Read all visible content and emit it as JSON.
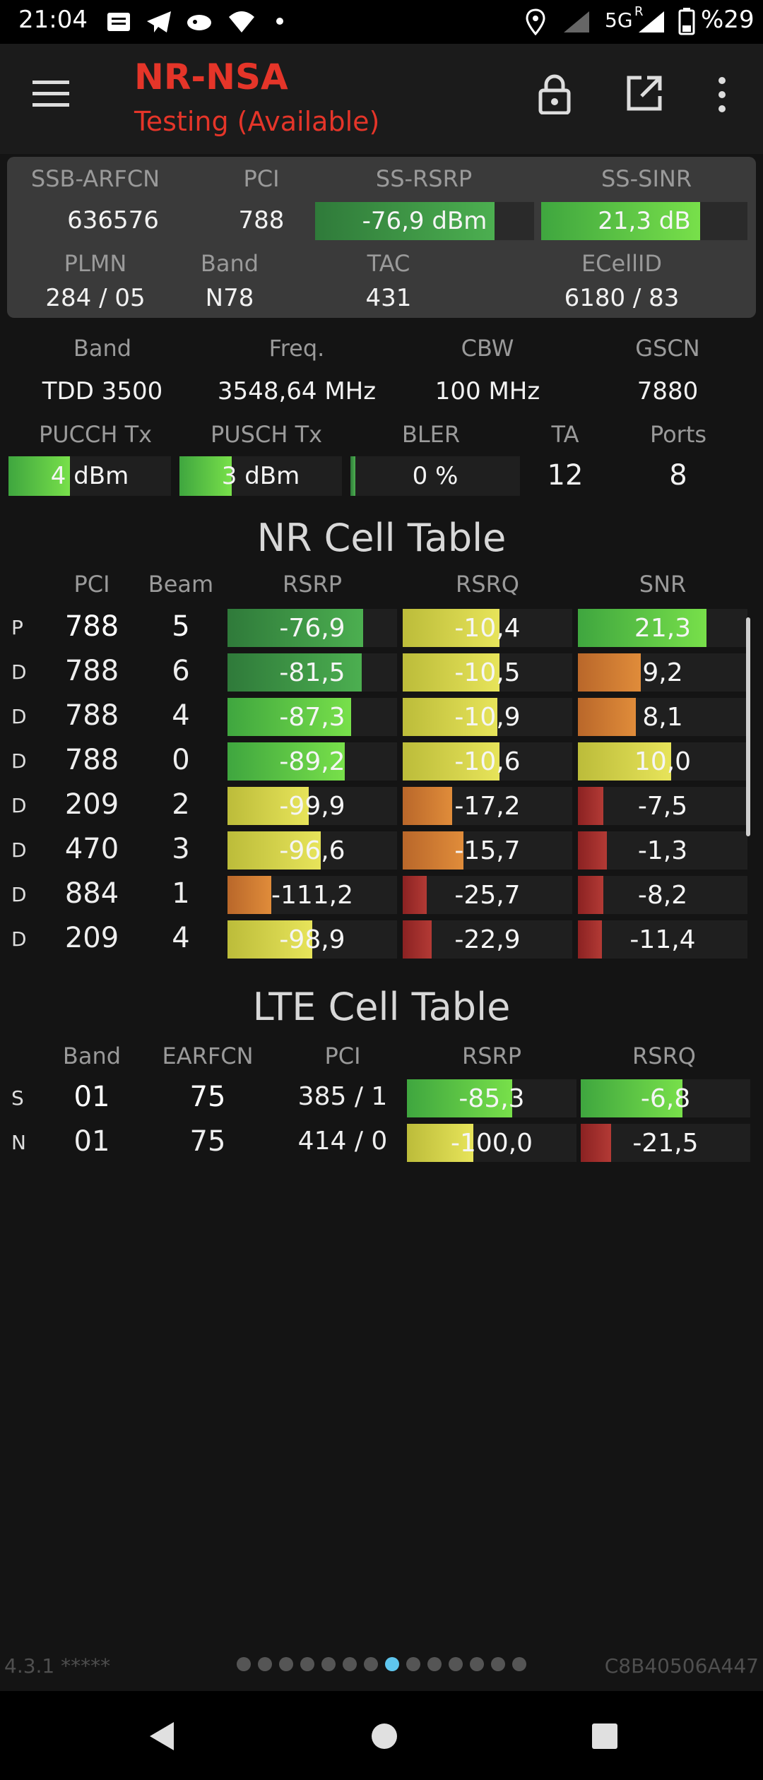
{
  "status_bar": {
    "time": "21:04",
    "network": "5G",
    "roaming": "R",
    "battery": "%29",
    "icons": [
      "message-icon",
      "telegram-icon",
      "app-icon",
      "wifi-icon",
      "dot-icon",
      "location-icon",
      "signal-icon",
      "battery-icon"
    ]
  },
  "app_bar": {
    "title": "NR-NSA",
    "subtitle": "Testing (Available)",
    "icons": [
      "menu-icon",
      "lock-icon",
      "open-external-icon",
      "more-vert-icon"
    ]
  },
  "serving": {
    "headers": {
      "arfcn": "SSB-ARFCN",
      "pci": "PCI",
      "rsrp": "SS-RSRP",
      "sinr": "SS-SINR",
      "plmn": "PLMN",
      "band": "Band",
      "tac": "TAC",
      "ecellid": "ECellID"
    },
    "arfcn": "636576",
    "pci": "788",
    "rsrp": "-76,9 dBm",
    "rsrp_level": 0.82,
    "sinr": "21,3 dB",
    "sinr_level": 0.77,
    "plmn": "284 / 05",
    "band": "N78",
    "tac": "431",
    "ecellid": "6180 / 83"
  },
  "carrier": {
    "headers": {
      "band": "Band",
      "freq": "Freq.",
      "cbw": "CBW",
      "gscn": "GSCN"
    },
    "band": "TDD 3500",
    "freq": "3548,64 MHz",
    "cbw": "100 MHz",
    "gscn": "7880"
  },
  "tx": {
    "headers": {
      "pucch": "PUCCH Tx",
      "pusch": "PUSCH Tx",
      "bler": "BLER",
      "ta": "TA",
      "ports": "Ports"
    },
    "pucch": "4 dBm",
    "pucch_level": 0.38,
    "pusch": "3 dBm",
    "pusch_level": 0.32,
    "bler": "0 %",
    "bler_level": 0.03,
    "ta": "12",
    "ports": "8"
  },
  "nr_table": {
    "title": "NR Cell Table",
    "columns": [
      "PCI",
      "Beam",
      "RSRP",
      "RSRQ",
      "SNR"
    ],
    "rows": [
      {
        "type": "P",
        "pci": "788",
        "beam": "5",
        "rsrp": "-76,9",
        "rsrp_level": 0.8,
        "rsrp_color": "g1",
        "rsrq": "-10,4",
        "rsrq_level": 0.57,
        "rsrq_color": "y1",
        "snr": "21,3",
        "snr_level": 0.76,
        "snr_color": "g2"
      },
      {
        "type": "D",
        "pci": "788",
        "beam": "6",
        "rsrp": "-81,5",
        "rsrp_level": 0.79,
        "rsrp_color": "g1",
        "rsrq": "-10,5",
        "rsrq_level": 0.57,
        "rsrq_color": "y1",
        "snr": "9,2",
        "snr_level": 0.37,
        "snr_color": "o1"
      },
      {
        "type": "D",
        "pci": "788",
        "beam": "4",
        "rsrp": "-87,3",
        "rsrp_level": 0.73,
        "rsrp_color": "g2",
        "rsrq": "-10,9",
        "rsrq_level": 0.56,
        "rsrq_color": "y1",
        "snr": "8,1",
        "snr_level": 0.34,
        "snr_color": "o1"
      },
      {
        "type": "D",
        "pci": "788",
        "beam": "0",
        "rsrp": "-89,2",
        "rsrp_level": 0.69,
        "rsrp_color": "g2",
        "rsrq": "-10,6",
        "rsrq_level": 0.57,
        "rsrq_color": "y1",
        "snr": "10,0",
        "snr_level": 0.55,
        "snr_color": "y1"
      },
      {
        "type": "D",
        "pci": "209",
        "beam": "2",
        "rsrp": "-99,9",
        "rsrp_level": 0.48,
        "rsrp_color": "y1",
        "rsrq": "-17,2",
        "rsrq_level": 0.29,
        "rsrq_color": "o1",
        "snr": "-7,5",
        "snr_level": 0.15,
        "snr_color": "r1"
      },
      {
        "type": "D",
        "pci": "470",
        "beam": "3",
        "rsrp": "-96,6",
        "rsrp_level": 0.55,
        "rsrp_color": "y1",
        "rsrq": "-15,7",
        "rsrq_level": 0.36,
        "rsrq_color": "o1",
        "snr": "-1,3",
        "snr_level": 0.17,
        "snr_color": "r1"
      },
      {
        "type": "D",
        "pci": "884",
        "beam": "1",
        "rsrp": "-111,2",
        "rsrp_level": 0.26,
        "rsrp_color": "o1",
        "rsrq": "-25,7",
        "rsrq_level": 0.14,
        "rsrq_color": "r1",
        "snr": "-8,2",
        "snr_level": 0.15,
        "snr_color": "r1"
      },
      {
        "type": "D",
        "pci": "209",
        "beam": "4",
        "rsrp": "-98,9",
        "rsrp_level": 0.5,
        "rsrp_color": "y1",
        "rsrq": "-22,9",
        "rsrq_level": 0.17,
        "rsrq_color": "r1",
        "snr": "-11,4",
        "snr_level": 0.14,
        "snr_color": "r1"
      }
    ]
  },
  "lte_table": {
    "title": "LTE Cell Table",
    "columns": [
      "Band",
      "EARFCN",
      "PCI",
      "RSRP",
      "RSRQ"
    ],
    "rows": [
      {
        "type": "S",
        "band": "01",
        "earfcn": "75",
        "pci": "385 / 1",
        "rsrp": "-85,3",
        "rsrp_level": 0.62,
        "rsrp_color": "g2",
        "rsrq": "-6,8",
        "rsrq_level": 0.6,
        "rsrq_color": "g2"
      },
      {
        "type": "N",
        "band": "01",
        "earfcn": "75",
        "pci": "414 / 0",
        "rsrp": "-100,0",
        "rsrp_level": 0.39,
        "rsrp_color": "y1",
        "rsrq": "-21,5",
        "rsrq_level": 0.18,
        "rsrq_color": "r1"
      }
    ]
  },
  "footer": {
    "version": "4.3.1 *****",
    "device_id": "C8B40506A447",
    "page_count": 14,
    "active_page": 7
  },
  "colors": {
    "accent_red": "#e53529",
    "page_dot_active": "#5fc6ee"
  },
  "nav": {
    "icons": [
      "back-icon",
      "home-icon",
      "recents-icon"
    ]
  }
}
